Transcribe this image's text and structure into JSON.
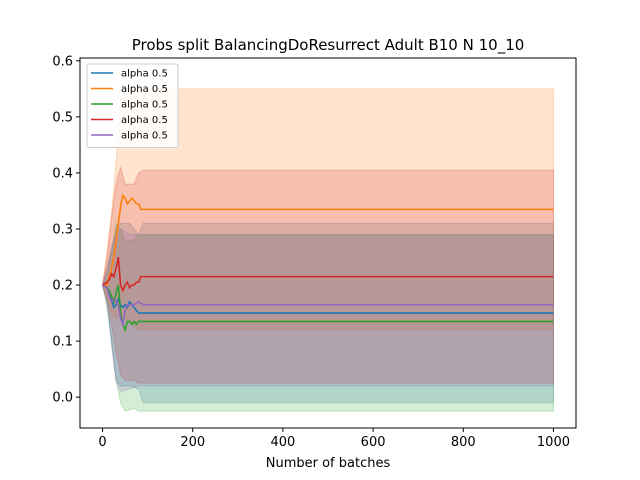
{
  "chart_data": {
    "type": "line",
    "title": "Probs split BalancingDoResurrect Adult B10 N 10_10",
    "xlabel": "Number of batches",
    "ylabel": "",
    "xlim": [
      -50,
      1050
    ],
    "ylim": [
      -0.055,
      0.605
    ],
    "x_ticks": [
      0,
      200,
      400,
      600,
      800,
      1000
    ],
    "y_ticks": [
      0.0,
      0.1,
      0.2,
      0.3,
      0.4,
      0.5,
      0.6
    ],
    "grid": false,
    "legend_position": "top-left",
    "series": [
      {
        "name": "alpha 0.5",
        "color": "#1f77b4",
        "points": [
          [
            0,
            0.2
          ],
          [
            5,
            0.2
          ],
          [
            10,
            0.195
          ],
          [
            15,
            0.19
          ],
          [
            20,
            0.175
          ],
          [
            25,
            0.16
          ],
          [
            30,
            0.165
          ],
          [
            35,
            0.175
          ],
          [
            40,
            0.165
          ],
          [
            45,
            0.16
          ],
          [
            50,
            0.165
          ],
          [
            55,
            0.16
          ],
          [
            60,
            0.17
          ],
          [
            65,
            0.165
          ],
          [
            70,
            0.16
          ],
          [
            75,
            0.155
          ],
          [
            80,
            0.15
          ],
          [
            90,
            0.15
          ],
          [
            1000,
            0.15
          ]
        ],
        "band": [
          [
            0,
            0.2,
            0.2
          ],
          [
            10,
            0.17,
            0.23
          ],
          [
            20,
            0.1,
            0.26
          ],
          [
            30,
            0.03,
            0.3
          ],
          [
            40,
            0.02,
            0.31
          ],
          [
            60,
            0.02,
            0.31
          ],
          [
            80,
            0.015,
            0.29
          ],
          [
            90,
            -0.01,
            0.31
          ],
          [
            1000,
            -0.01,
            0.31
          ]
        ]
      },
      {
        "name": "alpha 0.5",
        "color": "#ff7f0e",
        "points": [
          [
            0,
            0.2
          ],
          [
            10,
            0.2
          ],
          [
            20,
            0.23
          ],
          [
            25,
            0.25
          ],
          [
            30,
            0.28
          ],
          [
            35,
            0.31
          ],
          [
            40,
            0.34
          ],
          [
            45,
            0.36
          ],
          [
            50,
            0.355
          ],
          [
            55,
            0.345
          ],
          [
            60,
            0.35
          ],
          [
            65,
            0.355
          ],
          [
            70,
            0.35
          ],
          [
            75,
            0.345
          ],
          [
            80,
            0.345
          ],
          [
            85,
            0.335
          ],
          [
            90,
            0.335
          ],
          [
            1000,
            0.335
          ]
        ],
        "band": [
          [
            0,
            0.2,
            0.2
          ],
          [
            10,
            0.18,
            0.26
          ],
          [
            20,
            0.15,
            0.33
          ],
          [
            30,
            0.14,
            0.42
          ],
          [
            40,
            0.15,
            0.53
          ],
          [
            50,
            0.14,
            0.55
          ],
          [
            80,
            0.12,
            0.55
          ],
          [
            90,
            0.12,
            0.55
          ],
          [
            1000,
            0.12,
            0.55
          ]
        ]
      },
      {
        "name": "alpha 0.5",
        "color": "#2ca02c",
        "points": [
          [
            0,
            0.2
          ],
          [
            10,
            0.195
          ],
          [
            15,
            0.19
          ],
          [
            20,
            0.18
          ],
          [
            25,
            0.17
          ],
          [
            30,
            0.185
          ],
          [
            35,
            0.2
          ],
          [
            40,
            0.15
          ],
          [
            45,
            0.13
          ],
          [
            50,
            0.12
          ],
          [
            55,
            0.135
          ],
          [
            60,
            0.135
          ],
          [
            65,
            0.13
          ],
          [
            70,
            0.135
          ],
          [
            75,
            0.13
          ],
          [
            80,
            0.135
          ],
          [
            90,
            0.135
          ],
          [
            1000,
            0.135
          ]
        ],
        "band": [
          [
            0,
            0.2,
            0.2
          ],
          [
            10,
            0.16,
            0.22
          ],
          [
            20,
            0.1,
            0.26
          ],
          [
            30,
            0.03,
            0.31
          ],
          [
            40,
            -0.01,
            0.3
          ],
          [
            50,
            -0.025,
            0.28
          ],
          [
            70,
            -0.02,
            0.28
          ],
          [
            80,
            -0.025,
            0.29
          ],
          [
            1000,
            -0.025,
            0.29
          ]
        ]
      },
      {
        "name": "alpha 0.5",
        "color": "#d62728",
        "points": [
          [
            0,
            0.2
          ],
          [
            10,
            0.205
          ],
          [
            15,
            0.21
          ],
          [
            20,
            0.22
          ],
          [
            25,
            0.215
          ],
          [
            30,
            0.23
          ],
          [
            35,
            0.25
          ],
          [
            40,
            0.2
          ],
          [
            45,
            0.19
          ],
          [
            50,
            0.2
          ],
          [
            55,
            0.205
          ],
          [
            60,
            0.195
          ],
          [
            65,
            0.2
          ],
          [
            70,
            0.2
          ],
          [
            75,
            0.205
          ],
          [
            80,
            0.205
          ],
          [
            85,
            0.215
          ],
          [
            90,
            0.215
          ],
          [
            1000,
            0.215
          ]
        ],
        "band": [
          [
            0,
            0.2,
            0.2
          ],
          [
            10,
            0.17,
            0.25
          ],
          [
            20,
            0.13,
            0.32
          ],
          [
            30,
            0.08,
            0.38
          ],
          [
            40,
            0.04,
            0.41
          ],
          [
            50,
            0.03,
            0.38
          ],
          [
            70,
            0.03,
            0.38
          ],
          [
            80,
            0.025,
            0.4
          ],
          [
            90,
            0.025,
            0.405
          ],
          [
            1000,
            0.025,
            0.405
          ]
        ]
      },
      {
        "name": "alpha 0.5",
        "color": "#9467bd",
        "points": [
          [
            0,
            0.2
          ],
          [
            10,
            0.195
          ],
          [
            15,
            0.18
          ],
          [
            20,
            0.17
          ],
          [
            25,
            0.175
          ],
          [
            30,
            0.17
          ],
          [
            35,
            0.165
          ],
          [
            40,
            0.14
          ],
          [
            45,
            0.13
          ],
          [
            50,
            0.155
          ],
          [
            55,
            0.165
          ],
          [
            60,
            0.165
          ],
          [
            70,
            0.165
          ],
          [
            80,
            0.17
          ],
          [
            90,
            0.165
          ],
          [
            1000,
            0.165
          ]
        ],
        "band": [
          [
            0,
            0.2,
            0.2
          ],
          [
            10,
            0.17,
            0.23
          ],
          [
            20,
            0.09,
            0.27
          ],
          [
            30,
            0.03,
            0.29
          ],
          [
            40,
            0.01,
            0.3
          ],
          [
            60,
            0.015,
            0.29
          ],
          [
            80,
            0.02,
            0.29
          ],
          [
            1000,
            0.02,
            0.29
          ]
        ]
      }
    ]
  }
}
